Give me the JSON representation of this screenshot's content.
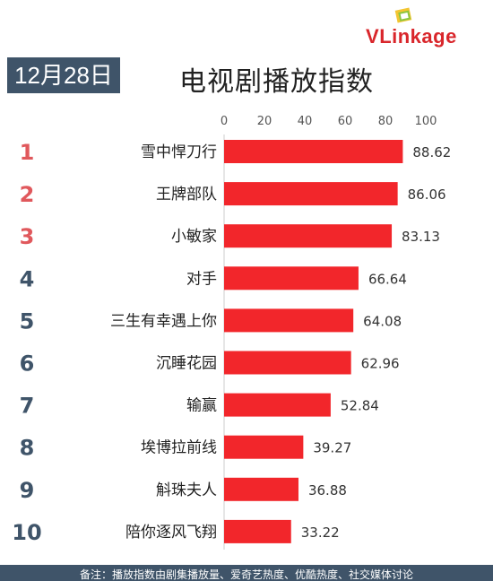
{
  "brand": {
    "logo_v": "V",
    "logo_rest": "Linkage"
  },
  "header": {
    "date": "12月28日",
    "title": "电视剧播放指数"
  },
  "footer": {
    "note": "备注：播放指数由剧集播放量、爱奇艺热度、优酷热度、社交媒体讨论"
  },
  "colors": {
    "bar": "#f2262b",
    "rank_top": "#e0585c",
    "rank_rest": "#3f5469",
    "badge": "#3f5469"
  },
  "chart_data": {
    "type": "bar",
    "orientation": "horizontal",
    "ranks": [
      "1",
      "2",
      "3",
      "4",
      "5",
      "6",
      "7",
      "8",
      "9",
      "10"
    ],
    "categories": [
      "雪中悍刀行",
      "王牌部队",
      "小敏家",
      "对手",
      "三生有幸遇上你",
      "沉睡花园",
      "输赢",
      "埃博拉前线",
      "斛珠夫人",
      "陪你逐风飞翔"
    ],
    "values": [
      88.62,
      86.06,
      83.13,
      66.64,
      64.08,
      62.96,
      52.84,
      39.27,
      36.88,
      33.22
    ],
    "value_labels": [
      "88.62",
      "86.06",
      "83.13",
      "66.64",
      "64.08",
      "62.96",
      "52.84",
      "39.27",
      "36.88",
      "33.22"
    ],
    "xlim": [
      0,
      100
    ],
    "ticks": [
      "0",
      "20",
      "40",
      "60",
      "80",
      "100"
    ],
    "grid": false,
    "title": "电视剧播放指数"
  }
}
